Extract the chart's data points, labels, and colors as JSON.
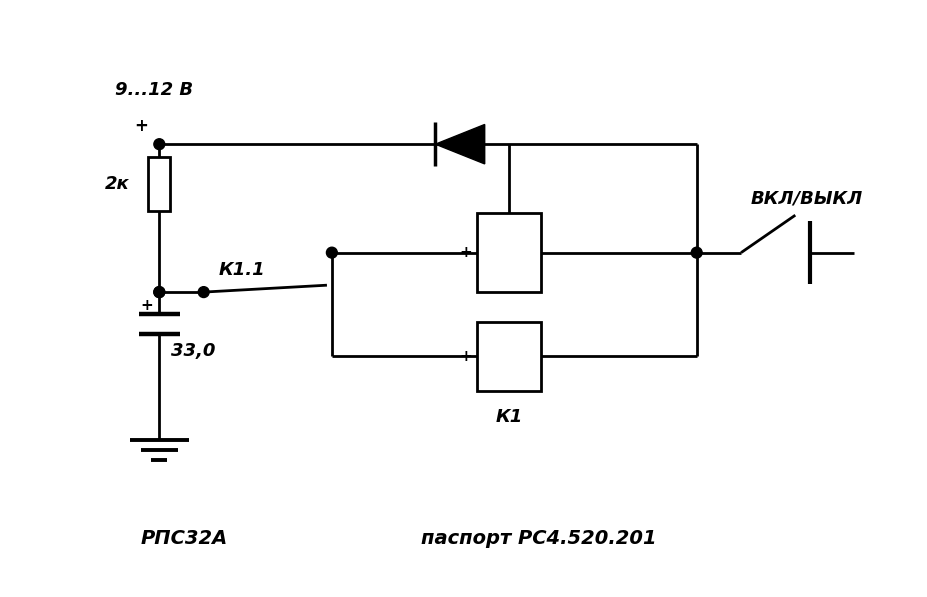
{
  "bg_color": "#ffffff",
  "line_color": "#000000",
  "text_color": "#000000",
  "title_voltage": "9...12 В",
  "label_resistor": "2к",
  "label_capacitor": "33,0",
  "label_relay": "К1",
  "label_switch": "К1.1",
  "label_button": "ВКЛ/ВЫКЛ",
  "label_model": "РПС32А",
  "label_passport": "паспорт РС4.520.201",
  "figsize": [
    9.27,
    5.97
  ],
  "dpi": 100
}
